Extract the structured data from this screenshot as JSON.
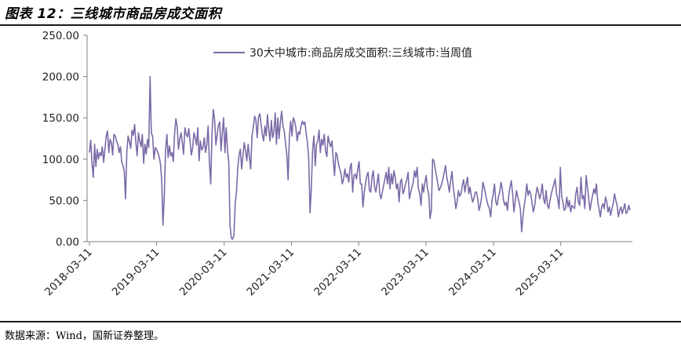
{
  "header": {
    "title": "图表 12：三线城市商品房成交面积"
  },
  "footer": {
    "source": "数据来源：Wind，国新证券整理。"
  },
  "colors": {
    "series": "#7b6aa8",
    "axis": "#808080",
    "text": "#222222"
  },
  "chart_data": {
    "type": "line",
    "title": "",
    "xlabel": "",
    "ylabel": "",
    "ylim": [
      0,
      250
    ],
    "yticks": [
      "0.00",
      "50.00",
      "100.00",
      "150.00",
      "200.00",
      "250.00"
    ],
    "xticks": [
      "2018-03-11",
      "2019-03-11",
      "2020-03-11",
      "2021-03-11",
      "2022-03-11",
      "2023-03-11",
      "2024-03-11",
      "2025-03-11"
    ],
    "grid": false,
    "legend_position": "top-right",
    "series": [
      {
        "name": "30大中城市:商品房成交面积:三线城市:当周值",
        "x_start": "2018-03-11",
        "x_step": "7 days",
        "values": [
          108,
          123,
          95,
          78,
          118,
          91,
          112,
          100,
          108,
          104,
          115,
          96,
          112,
          128,
          134,
          108,
          124,
          120,
          105,
          130,
          128,
          122,
          118,
          108,
          115,
          97,
          92,
          85,
          52,
          110,
          128,
          121,
          113,
          135,
          129,
          142,
          120,
          104,
          132,
          122,
          115,
          130,
          95,
          118,
          106,
          124,
          114,
          200,
          132,
          127,
          100,
          114,
          112,
          108,
          103,
          95,
          75,
          20,
          55,
          110,
          130,
          102,
          116,
          104,
          108,
          97,
          130,
          149,
          140,
          112,
          124,
          132,
          120,
          106,
          138,
          130,
          127,
          137,
          121,
          105,
          114,
          132,
          126,
          117,
          138,
          98,
          122,
          111,
          114,
          126,
          108,
          117,
          140,
          96,
          70,
          131,
          160,
          148,
          117,
          130,
          141,
          145,
          110,
          132,
          150,
          108,
          138,
          112,
          95,
          20,
          4,
          3,
          8,
          46,
          62,
          90,
          105,
          112,
          88,
          104,
          120,
          110,
          98,
          118,
          102,
          88,
          128,
          138,
          152,
          148,
          126,
          150,
          155,
          143,
          130,
          122,
          140,
          128,
          154,
          135,
          122,
          147,
          126,
          132,
          156,
          118,
          150,
          125,
          145,
          158,
          140,
          134,
          120,
          105,
          75,
          128,
          146,
          128,
          150,
          146,
          138,
          122,
          133,
          130,
          140,
          146,
          142,
          145,
          130,
          120,
          100,
          35,
          65,
          112,
          128,
          92,
          118,
          122,
          135,
          108,
          124,
          117,
          130,
          110,
          103,
          128,
          120,
          115,
          122,
          98,
          80,
          108,
          105,
          94,
          88,
          82,
          70,
          76,
          88,
          78,
          82,
          72,
          90,
          95,
          60,
          80,
          82,
          76,
          88,
          97,
          70,
          70,
          42,
          60,
          70,
          80,
          84,
          62,
          60,
          78,
          86,
          66,
          60,
          72,
          82,
          58,
          52,
          60,
          68,
          76,
          84,
          70,
          90,
          64,
          82,
          70,
          86,
          78,
          64,
          70,
          48,
          72,
          76,
          58,
          62,
          70,
          75,
          84,
          52,
          60,
          66,
          72,
          86,
          78,
          90,
          64,
          58,
          44,
          70,
          60,
          72,
          80,
          64,
          58,
          28,
          38,
          100,
          98,
          88,
          80,
          70,
          62,
          65,
          70,
          76,
          84,
          92,
          78,
          70,
          60,
          74,
          85,
          66,
          54,
          40,
          48,
          62,
          55,
          58,
          68,
          75,
          60,
          70,
          78,
          58,
          66,
          56,
          48,
          52,
          60,
          60,
          52,
          38,
          44,
          54,
          72,
          66,
          58,
          50,
          44,
          40,
          30,
          50,
          58,
          70,
          48,
          44,
          54,
          60,
          72,
          64,
          50,
          44,
          48,
          38,
          56,
          66,
          74,
          58,
          36,
          48,
          62,
          54,
          48,
          40,
          12,
          30,
          44,
          54,
          70,
          56,
          62,
          58,
          48,
          36,
          42,
          56,
          66,
          60,
          52,
          58,
          70,
          52,
          46,
          62,
          44,
          40,
          50,
          58,
          64,
          70,
          76,
          58,
          52,
          40,
          90,
          56,
          48,
          38,
          40,
          54,
          42,
          50,
          36,
          44,
          42,
          40,
          58,
          66,
          48,
          44,
          78,
          52,
          56,
          40,
          80,
          66,
          52,
          38,
          48,
          56,
          64,
          58,
          70,
          48,
          40,
          30,
          42,
          46,
          40,
          54,
          48,
          36,
          42,
          32,
          40,
          46,
          58,
          50,
          44,
          30,
          38,
          42,
          34,
          40,
          46,
          34,
          36,
          44,
          38
        ]
      }
    ]
  }
}
